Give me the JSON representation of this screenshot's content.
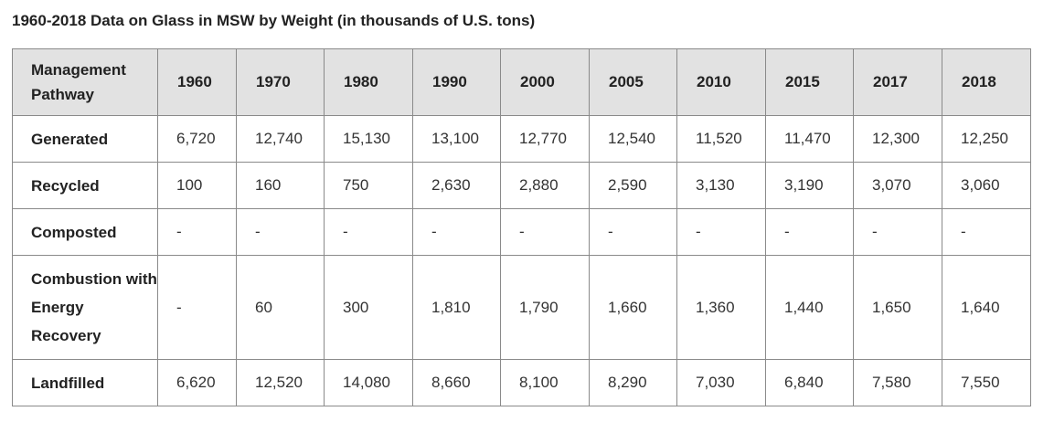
{
  "title": "1960-2018 Data on Glass in MSW by Weight (in thousands of U.S. tons)",
  "table": {
    "header_label": "Management Pathway",
    "columns": [
      "1960",
      "1970",
      "1980",
      "1990",
      "2000",
      "2005",
      "2010",
      "2015",
      "2017",
      "2018"
    ],
    "rows": [
      {
        "label": "Generated",
        "values": [
          "6,720",
          "12,740",
          "15,130",
          "13,100",
          "12,770",
          "12,540",
          "11,520",
          "11,470",
          "12,300",
          "12,250"
        ]
      },
      {
        "label": "Recycled",
        "values": [
          "100",
          "160",
          "750",
          "2,630",
          "2,880",
          "2,590",
          "3,130",
          "3,190",
          "3,070",
          "3,060"
        ]
      },
      {
        "label": "Composted",
        "values": [
          "-",
          "-",
          "-",
          "-",
          "-",
          "-",
          "-",
          "-",
          "-",
          "-"
        ]
      },
      {
        "label": "Combustion with Energy Recovery",
        "values": [
          "-",
          "60",
          "300",
          "1,810",
          "1,790",
          "1,660",
          "1,360",
          "1,440",
          "1,650",
          "1,640"
        ]
      },
      {
        "label": "Landfilled",
        "values": [
          "6,620",
          "12,520",
          "14,080",
          "8,660",
          "8,100",
          "8,290",
          "7,030",
          "6,840",
          "7,580",
          "7,550"
        ]
      }
    ]
  }
}
